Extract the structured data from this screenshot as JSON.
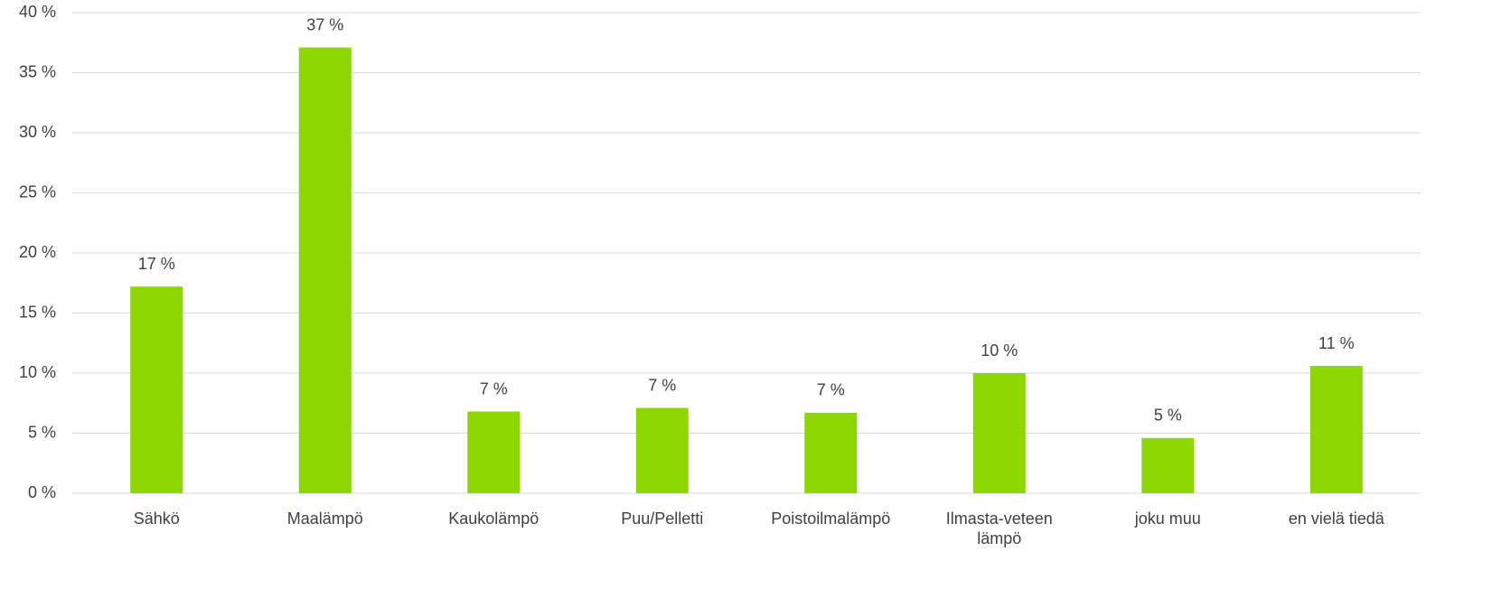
{
  "chart_data": {
    "type": "bar",
    "categories": [
      "Sähkö",
      "Maalämpö",
      "Kaukolämpö",
      "Puu/Pelletti",
      "Poistoilmalämpö",
      "Ilmasta-veteen lämpö",
      "joku muu",
      "en vielä tiedä"
    ],
    "values": [
      17.2,
      37.1,
      6.8,
      7.1,
      6.7,
      10.0,
      4.6,
      10.6
    ],
    "value_labels": [
      "17 %",
      "37 %",
      "7 %",
      "7 %",
      "7 %",
      "10 %",
      "5 %",
      "11 %"
    ],
    "color": "#8ed600",
    "ylim": [
      0,
      40
    ],
    "yticks": [
      {
        "value": 0,
        "label": "0 %"
      },
      {
        "value": 5,
        "label": "5 %"
      },
      {
        "value": 10,
        "label": "10 %"
      },
      {
        "value": 15,
        "label": "15 %"
      },
      {
        "value": 20,
        "label": "20 %"
      },
      {
        "value": 25,
        "label": "25 %"
      },
      {
        "value": 30,
        "label": "30 %"
      },
      {
        "value": 35,
        "label": "35 %"
      },
      {
        "value": 40,
        "label": "40 %"
      }
    ],
    "grid": true
  }
}
